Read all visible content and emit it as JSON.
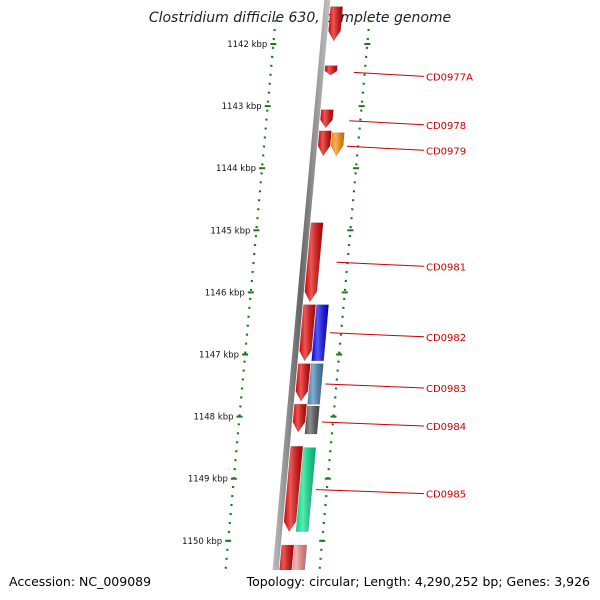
{
  "title": "Clostridium difficile 630, complete genome",
  "footer": {
    "accession": "Accession: NC_009089",
    "summary": "Topology: circular; Length: 4,290,252 bp; Genes: 3,926"
  },
  "colors": {
    "backbone": "#888888",
    "tick": "#1a7a1a",
    "label": "#cc0000",
    "gene_red": "#dd0000",
    "gene_orange": "#ff8800",
    "gene_blue": "#0000ee",
    "gene_steelblue": "#4682b4",
    "gene_gray": "#555555",
    "gene_green": "#00e08a",
    "gene_pink": "#ee8888"
  },
  "axis": {
    "unit": "kbp",
    "ticks": [
      {
        "kbp": 1142,
        "label": "1142 kbp"
      },
      {
        "kbp": 1143,
        "label": "1143 kbp"
      },
      {
        "kbp": 1144,
        "label": "1144 kbp"
      },
      {
        "kbp": 1145,
        "label": "1145 kbp"
      },
      {
        "kbp": 1146,
        "label": "1146 kbp"
      },
      {
        "kbp": 1147,
        "label": "1147 kbp"
      },
      {
        "kbp": 1148,
        "label": "1148 kbp"
      },
      {
        "kbp": 1149,
        "label": "1149 kbp"
      },
      {
        "kbp": 1150,
        "label": "1150 kbp"
      }
    ]
  },
  "genes": [
    {
      "label": "",
      "start": 1141.4,
      "end": 1141.95,
      "track": "inner",
      "color": "gene_red",
      "strand": "-"
    },
    {
      "label": "CD0977A",
      "start": 1142.35,
      "end": 1142.5,
      "track": "inner",
      "color": "gene_red",
      "strand": "-"
    },
    {
      "label": "CD0978",
      "start": 1143.06,
      "end": 1143.35,
      "track": "inner",
      "color": "gene_red",
      "strand": "-"
    },
    {
      "label": "",
      "start": 1143.4,
      "end": 1143.8,
      "track": "inner",
      "color": "gene_red",
      "strand": "-"
    },
    {
      "label": "CD0979",
      "start": 1143.43,
      "end": 1143.8,
      "track": "outer",
      "color": "gene_orange",
      "strand": "-"
    },
    {
      "label": "CD0981",
      "start": 1144.88,
      "end": 1146.15,
      "track": "inner",
      "color": "gene_red",
      "strand": "-"
    },
    {
      "label": "",
      "start": 1146.2,
      "end": 1147.1,
      "track": "inner",
      "color": "gene_red",
      "strand": "-"
    },
    {
      "label": "CD0982",
      "start": 1146.2,
      "end": 1147.1,
      "track": "outer",
      "color": "gene_blue",
      "strand": "+"
    },
    {
      "label": "",
      "start": 1147.15,
      "end": 1147.75,
      "track": "inner",
      "color": "gene_red",
      "strand": "-"
    },
    {
      "label": "CD0983",
      "start": 1147.15,
      "end": 1147.8,
      "track": "outer",
      "color": "gene_steelblue",
      "strand": "+"
    },
    {
      "label": "",
      "start": 1147.8,
      "end": 1148.25,
      "track": "inner",
      "color": "gene_red",
      "strand": "-"
    },
    {
      "label": "CD0984",
      "start": 1147.83,
      "end": 1148.28,
      "track": "outer",
      "color": "gene_gray",
      "strand": "+"
    },
    {
      "label": "",
      "start": 1148.48,
      "end": 1149.85,
      "track": "inner",
      "color": "gene_red",
      "strand": "-"
    },
    {
      "label": "CD0985",
      "start": 1148.5,
      "end": 1149.85,
      "track": "outer",
      "color": "gene_green",
      "strand": "+"
    },
    {
      "label": "",
      "start": 1150.07,
      "end": 1150.9,
      "track": "inner",
      "color": "gene_red",
      "strand": "-"
    },
    {
      "label": "",
      "start": 1150.07,
      "end": 1150.9,
      "track": "outer",
      "color": "gene_pink",
      "strand": "-"
    }
  ]
}
